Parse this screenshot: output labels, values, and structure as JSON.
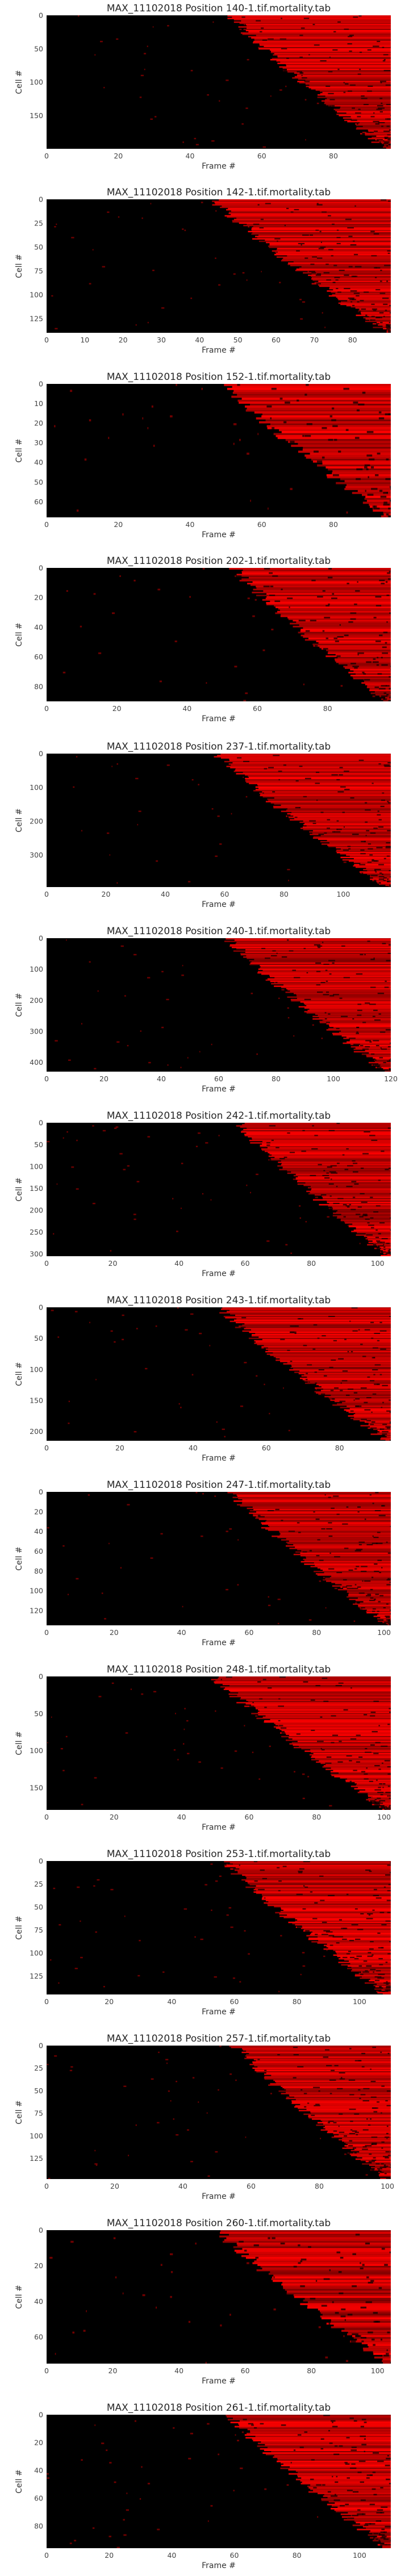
{
  "chart_data": [
    {
      "type": "heatmap",
      "title": "MAX_11102018 Position 140-1.tif.mortality.tab",
      "xlabel": "Frame #",
      "ylabel": "Cell #",
      "x_ticks": [
        0,
        20,
        40,
        60,
        80
      ],
      "y_ticks": [
        0,
        50,
        100,
        150
      ],
      "xlim": [
        0,
        96
      ],
      "ylim": [
        200,
        0
      ],
      "colormap": [
        "#000000",
        "#ff0000"
      ],
      "grid": false
    },
    {
      "type": "heatmap",
      "title": "MAX_11102018 Position 142-1.tif.mortality.tab",
      "xlabel": "Frame #",
      "ylabel": "Cell #",
      "x_ticks": [
        0,
        10,
        20,
        30,
        40,
        50,
        60,
        70,
        80
      ],
      "y_ticks": [
        0,
        25,
        50,
        75,
        100,
        125
      ],
      "xlim": [
        0,
        90
      ],
      "ylim": [
        140,
        0
      ],
      "colormap": [
        "#000000",
        "#ff0000"
      ],
      "grid": false
    },
    {
      "type": "heatmap",
      "title": "MAX_11102018 Position 152-1.tif.mortality.tab",
      "xlabel": "Frame #",
      "ylabel": "Cell #",
      "x_ticks": [
        0,
        20,
        40,
        60,
        80
      ],
      "y_ticks": [
        0,
        10,
        20,
        30,
        40,
        50,
        60
      ],
      "xlim": [
        0,
        96
      ],
      "ylim": [
        68,
        0
      ],
      "colormap": [
        "#000000",
        "#ff0000"
      ],
      "grid": false
    },
    {
      "type": "heatmap",
      "title": "MAX_11102018 Position 202-1.tif.mortality.tab",
      "xlabel": "Frame #",
      "ylabel": "Cell #",
      "x_ticks": [
        0,
        20,
        40,
        60,
        80
      ],
      "y_ticks": [
        0,
        20,
        40,
        60,
        80
      ],
      "xlim": [
        0,
        98
      ],
      "ylim": [
        90,
        0
      ],
      "colormap": [
        "#000000",
        "#ff0000"
      ],
      "grid": false
    },
    {
      "type": "heatmap",
      "title": "MAX_11102018 Position 237-1.tif.mortality.tab",
      "xlabel": "Frame #",
      "ylabel": "Cell #",
      "x_ticks": [
        0,
        20,
        40,
        60,
        80,
        100
      ],
      "y_ticks": [
        0,
        100,
        200,
        300
      ],
      "xlim": [
        0,
        116
      ],
      "ylim": [
        395,
        0
      ],
      "colormap": [
        "#000000",
        "#ff0000"
      ],
      "grid": false
    },
    {
      "type": "heatmap",
      "title": "MAX_11102018 Position 240-1.tif.mortality.tab",
      "xlabel": "Frame #",
      "ylabel": "Cell #",
      "x_ticks": [
        0,
        20,
        40,
        60,
        80,
        100,
        120
      ],
      "y_ticks": [
        0,
        100,
        200,
        300,
        400
      ],
      "xlim": [
        0,
        120
      ],
      "ylim": [
        430,
        0
      ],
      "colormap": [
        "#000000",
        "#ff0000"
      ],
      "grid": false
    },
    {
      "type": "heatmap",
      "title": "MAX_11102018 Position 242-1.tif.mortality.tab",
      "xlabel": "Frame #",
      "ylabel": "Cell #",
      "x_ticks": [
        0,
        20,
        40,
        60,
        80,
        100
      ],
      "y_ticks": [
        0,
        50,
        100,
        150,
        200,
        250,
        300
      ],
      "xlim": [
        0,
        104
      ],
      "ylim": [
        305,
        0
      ],
      "colormap": [
        "#000000",
        "#ff0000"
      ],
      "grid": false
    },
    {
      "type": "heatmap",
      "title": "MAX_11102018 Position 243-1.tif.mortality.tab",
      "xlabel": "Frame #",
      "ylabel": "Cell #",
      "x_ticks": [
        0,
        20,
        40,
        60,
        80
      ],
      "y_ticks": [
        0,
        50,
        100,
        150,
        200
      ],
      "xlim": [
        0,
        94
      ],
      "ylim": [
        215,
        0
      ],
      "colormap": [
        "#000000",
        "#ff0000"
      ],
      "grid": false
    },
    {
      "type": "heatmap",
      "title": "MAX_11102018 Position 247-1.tif.mortality.tab",
      "xlabel": "Frame #",
      "ylabel": "Cell #",
      "x_ticks": [
        0,
        20,
        40,
        60,
        80,
        100
      ],
      "y_ticks": [
        0,
        20,
        40,
        60,
        80,
        100,
        120
      ],
      "xlim": [
        0,
        102
      ],
      "ylim": [
        135,
        0
      ],
      "colormap": [
        "#000000",
        "#ff0000"
      ],
      "grid": false
    },
    {
      "type": "heatmap",
      "title": "MAX_11102018 Position 248-1.tif.mortality.tab",
      "xlabel": "Frame #",
      "ylabel": "Cell #",
      "x_ticks": [
        0,
        20,
        40,
        60,
        80,
        100
      ],
      "y_ticks": [
        0,
        50,
        100,
        150
      ],
      "xlim": [
        0,
        102
      ],
      "ylim": [
        180,
        0
      ],
      "colormap": [
        "#000000",
        "#ff0000"
      ],
      "grid": false
    },
    {
      "type": "heatmap",
      "title": "MAX_11102018 Position 253-1.tif.mortality.tab",
      "xlabel": "Frame #",
      "ylabel": "Cell #",
      "x_ticks": [
        0,
        20,
        40,
        60,
        80,
        100
      ],
      "y_ticks": [
        0,
        25,
        50,
        75,
        100,
        125
      ],
      "xlim": [
        0,
        110
      ],
      "ylim": [
        145,
        0
      ],
      "colormap": [
        "#000000",
        "#ff0000"
      ],
      "grid": false
    },
    {
      "type": "heatmap",
      "title": "MAX_11102018 Position 257-1.tif.mortality.tab",
      "xlabel": "Frame #",
      "ylabel": "Cell #",
      "x_ticks": [
        0,
        20,
        40,
        60,
        80,
        100
      ],
      "y_ticks": [
        0,
        25,
        50,
        75,
        100,
        125
      ],
      "xlim": [
        0,
        101
      ],
      "ylim": [
        148,
        0
      ],
      "colormap": [
        "#000000",
        "#ff0000"
      ],
      "grid": false
    },
    {
      "type": "heatmap",
      "title": "MAX_11102018 Position 260-1.tif.mortality.tab",
      "xlabel": "Frame #",
      "ylabel": "Cell #",
      "x_ticks": [
        0,
        20,
        40,
        60,
        80,
        100
      ],
      "y_ticks": [
        0,
        20,
        40,
        60
      ],
      "xlim": [
        0,
        104
      ],
      "ylim": [
        75,
        0
      ],
      "colormap": [
        "#000000",
        "#ff0000"
      ],
      "grid": false
    },
    {
      "type": "heatmap",
      "title": "MAX_11102018 Position 261-1.tif.mortality.tab",
      "xlabel": "Frame #",
      "ylabel": "Cell #",
      "x_ticks": [
        0,
        20,
        40,
        60,
        80,
        100
      ],
      "y_ticks": [
        0,
        20,
        40,
        60,
        80
      ],
      "xlim": [
        0,
        110
      ],
      "ylim": [
        96,
        0
      ],
      "colormap": [
        "#000000",
        "#ff0000"
      ],
      "grid": false
    }
  ]
}
